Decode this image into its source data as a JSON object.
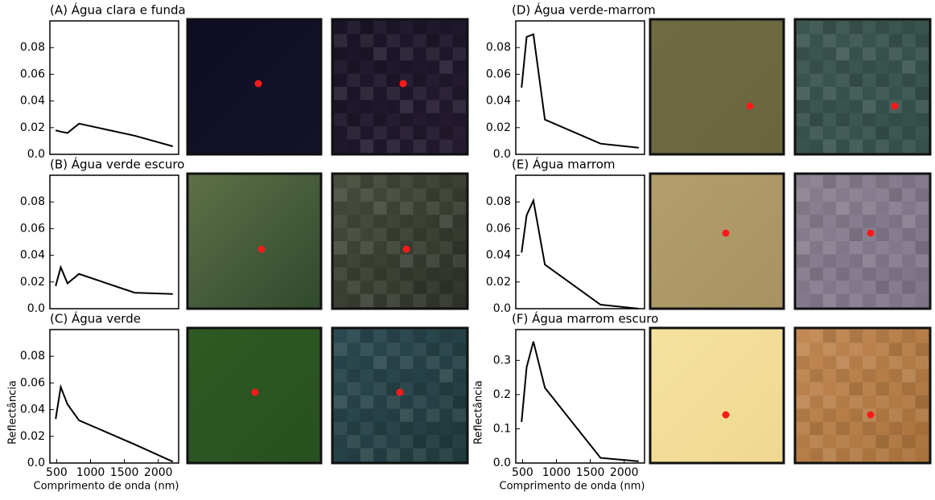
{
  "chart_data": [
    {
      "type": "line",
      "title": "(A) Água clara e funda",
      "x": [
        485,
        560,
        660,
        830,
        1650,
        2215
      ],
      "values": [
        0.018,
        0.017,
        0.016,
        0.023,
        0.014,
        0.006
      ],
      "color": "#000000",
      "xlim": [
        400,
        2300
      ],
      "ylim": [
        0,
        0.1
      ],
      "yticks": [
        {
          "value": 0,
          "label": "0.0"
        },
        0.02,
        0.04,
        0.06,
        0.08
      ]
    },
    {
      "type": "line",
      "title": "(B) Água verde escuro",
      "x": [
        485,
        560,
        660,
        830,
        1650,
        2215
      ],
      "values": [
        0.017,
        0.031,
        0.019,
        0.026,
        0.012,
        0.011
      ],
      "color": "#000000",
      "xlim": [
        400,
        2300
      ],
      "ylim": [
        0,
        0.1
      ],
      "yticks": [
        {
          "value": 0,
          "label": "0.0"
        },
        0.02,
        0.04,
        0.06,
        0.08
      ]
    },
    {
      "type": "line",
      "title": "(C) Água verde",
      "x": [
        485,
        560,
        660,
        830,
        1650,
        2215
      ],
      "values": [
        0.033,
        0.057,
        0.044,
        0.032,
        0.014,
        0.001
      ],
      "color": "#000000",
      "xlim": [
        400,
        2300
      ],
      "ylim": [
        0,
        0.1
      ],
      "yticks": [
        {
          "value": 0,
          "label": "0.0"
        },
        0.02,
        0.04,
        0.06,
        0.08
      ],
      "xticks": [
        500,
        1000,
        1500,
        2000
      ],
      "xlabel": "Comprimento de onda (nm)",
      "ylabel": "Reflectância"
    },
    {
      "type": "line",
      "title": "(D) Água verde-marrom",
      "x": [
        485,
        560,
        660,
        830,
        1650,
        2215
      ],
      "values": [
        0.05,
        0.088,
        0.09,
        0.026,
        0.008,
        0.005
      ],
      "color": "#000000",
      "xlim": [
        400,
        2300
      ],
      "ylim": [
        0,
        0.1
      ],
      "yticks": [
        {
          "value": 0,
          "label": "0.0"
        },
        0.02,
        0.04,
        0.06,
        0.08
      ]
    },
    {
      "type": "line",
      "title": "(E) Água marrom",
      "x": [
        485,
        560,
        660,
        830,
        1650,
        2215
      ],
      "values": [
        0.042,
        0.07,
        0.081,
        0.033,
        0.003,
        0.0
      ],
      "color": "#000000",
      "xlim": [
        400,
        2300
      ],
      "ylim": [
        0,
        0.1
      ],
      "yticks": [
        {
          "value": 0,
          "label": "0.0"
        },
        0.02,
        0.04,
        0.06,
        0.08
      ]
    },
    {
      "type": "line",
      "title": "(F) Água marrom escuro",
      "x": [
        485,
        560,
        660,
        830,
        1650,
        2215
      ],
      "values": [
        0.12,
        0.28,
        0.355,
        0.22,
        0.015,
        0.005
      ],
      "color": "#000000",
      "xlim": [
        400,
        2300
      ],
      "ylim": [
        0,
        0.39
      ],
      "yticks": [
        {
          "value": 0,
          "label": "0.0"
        },
        0.1,
        0.2,
        0.3
      ],
      "xticks": [
        500,
        1000,
        1500,
        2000
      ],
      "xlabel": "Comprimento de onda (nm)",
      "ylabel": "Reflectância"
    }
  ]
}
